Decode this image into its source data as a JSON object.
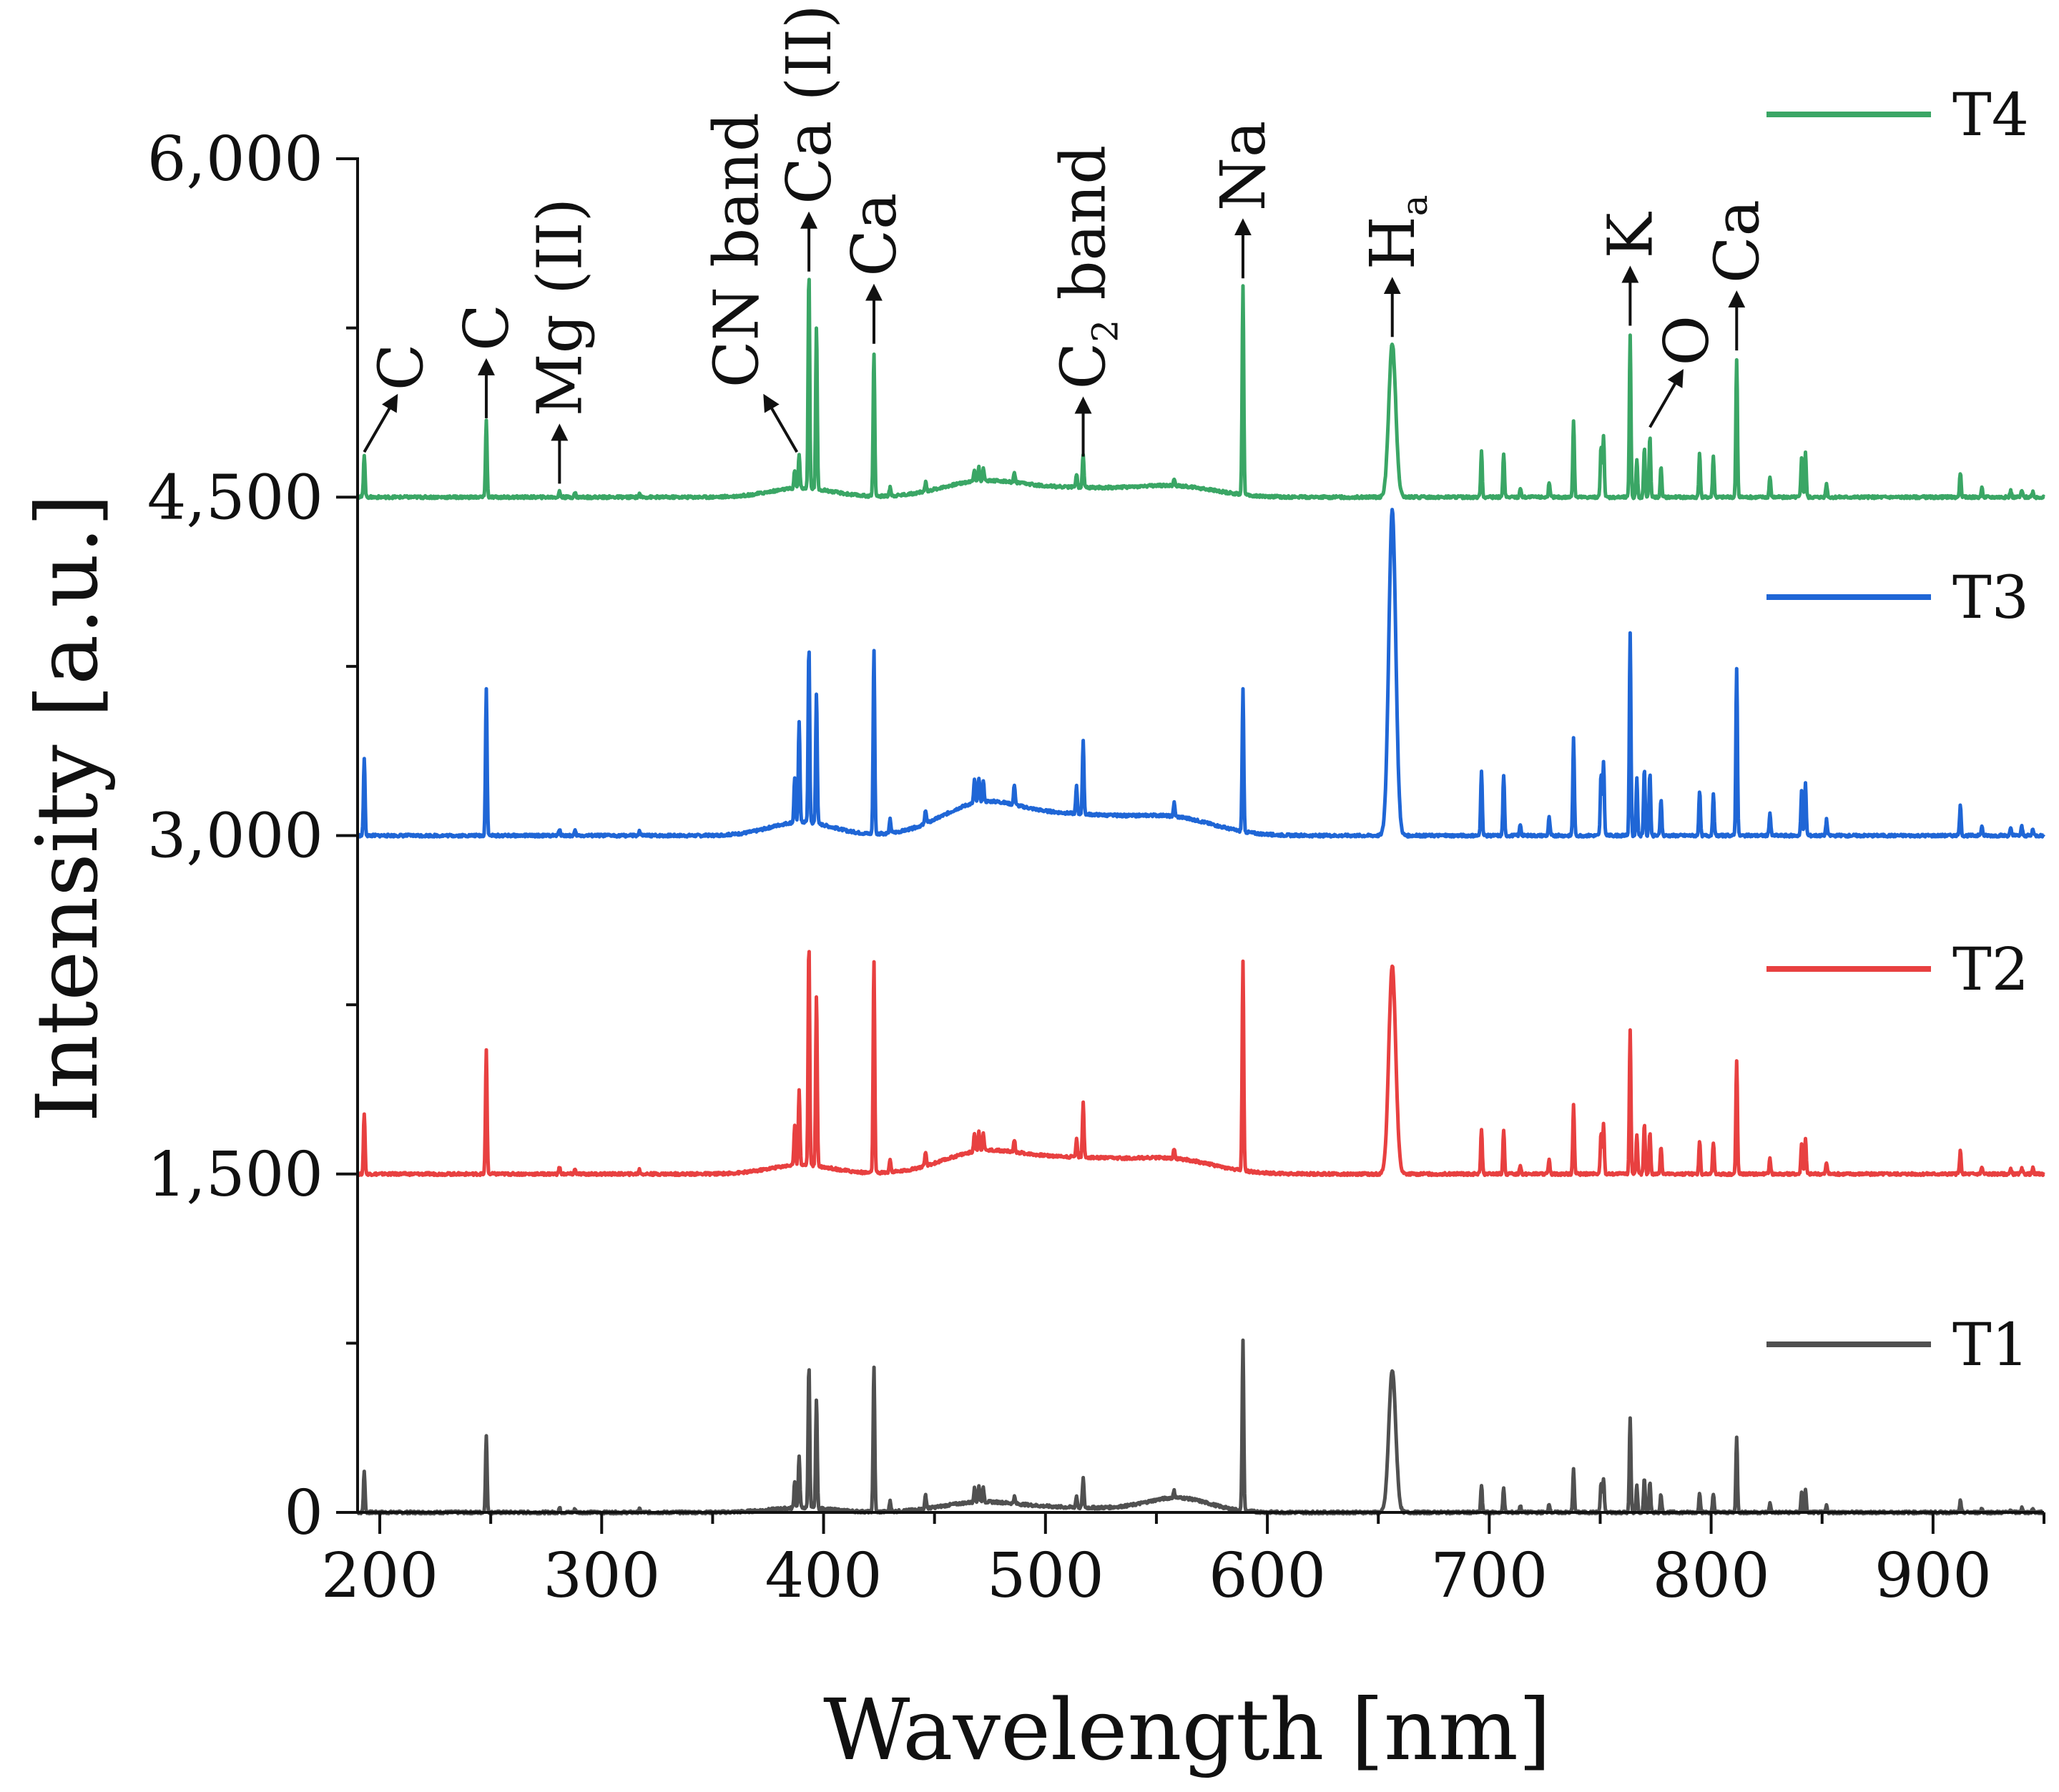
{
  "chart_data": {
    "type": "line",
    "xlabel": "Wavelength [nm]",
    "ylabel": "Intensity [a.u.]",
    "xlim": [
      190,
      950
    ],
    "ylim": [
      0,
      6000
    ],
    "x_ticks": [
      200,
      300,
      400,
      500,
      600,
      700,
      800,
      900
    ],
    "x_tick_labels": [
      "200",
      "300",
      "400",
      "500",
      "600",
      "700",
      "800",
      "900"
    ],
    "y_ticks": [
      0,
      1500,
      3000,
      4500,
      6000
    ],
    "y_tick_labels": [
      "0",
      "1,500",
      "3,000",
      "4,500",
      "6,000"
    ],
    "legend": [
      {
        "name": "T4",
        "color": "#3aa665"
      },
      {
        "name": "T3",
        "color": "#1f66d6"
      },
      {
        "name": "T2",
        "color": "#e84040"
      },
      {
        "name": "T1",
        "color": "#505050"
      }
    ],
    "series": [
      {
        "name": "T1",
        "color": "#505050",
        "baseline": 0,
        "peaks": [
          [
            193,
            180
          ],
          [
            248,
            340
          ],
          [
            281,
            20
          ],
          [
            288,
            15
          ],
          [
            317,
            15
          ],
          [
            387,
            120
          ],
          [
            389,
            230
          ],
          [
            393.4,
            640
          ],
          [
            396.8,
            490
          ],
          [
            422.7,
            650
          ],
          [
            430,
            50
          ],
          [
            446,
            60
          ],
          [
            468,
            60
          ],
          [
            470,
            70
          ],
          [
            472,
            60
          ],
          [
            486,
            30
          ],
          [
            514,
            50
          ],
          [
            517,
            130
          ],
          [
            558,
            30
          ],
          [
            589,
            750
          ],
          [
            656.3,
            630
          ],
          [
            696.5,
            120
          ],
          [
            706.5,
            110
          ],
          [
            714,
            30
          ],
          [
            727,
            40
          ],
          [
            738,
            190
          ],
          [
            750.4,
            130
          ],
          [
            751.5,
            150
          ],
          [
            763.5,
            420
          ],
          [
            766.5,
            120
          ],
          [
            769.9,
            150
          ],
          [
            772.4,
            130
          ],
          [
            777.4,
            80
          ],
          [
            794.8,
            90
          ],
          [
            801,
            80
          ],
          [
            811.5,
            330
          ],
          [
            826.5,
            40
          ],
          [
            840.8,
            90
          ],
          [
            842.5,
            100
          ],
          [
            852,
            30
          ],
          [
            912.3,
            50
          ],
          [
            922,
            20
          ],
          [
            935,
            15
          ],
          [
            940,
            20
          ],
          [
            945,
            15
          ]
        ],
        "bumps": [
          [
            390,
            20,
            20
          ],
          [
            470,
            40,
            25
          ],
          [
            513,
            20,
            40
          ],
          [
            560,
            60,
            20
          ]
        ]
      },
      {
        "name": "T2",
        "color": "#e84040",
        "baseline": 1500,
        "peaks": [
          [
            193,
            270
          ],
          [
            248,
            550
          ],
          [
            281,
            30
          ],
          [
            288,
            20
          ],
          [
            317,
            20
          ],
          [
            387,
            180
          ],
          [
            389,
            330
          ],
          [
            393.4,
            990
          ],
          [
            396.8,
            760
          ],
          [
            422.7,
            940
          ],
          [
            430,
            60
          ],
          [
            446,
            60
          ],
          [
            468,
            80
          ],
          [
            470,
            90
          ],
          [
            472,
            80
          ],
          [
            486,
            50
          ],
          [
            514,
            80
          ],
          [
            517,
            240
          ],
          [
            558,
            40
          ],
          [
            589,
            930
          ],
          [
            656.3,
            920
          ],
          [
            696.5,
            200
          ],
          [
            706.5,
            190
          ],
          [
            714,
            40
          ],
          [
            727,
            60
          ],
          [
            738,
            310
          ],
          [
            750.4,
            180
          ],
          [
            751.5,
            220
          ],
          [
            763.5,
            640
          ],
          [
            766.5,
            170
          ],
          [
            769.9,
            220
          ],
          [
            772.4,
            190
          ],
          [
            777.4,
            120
          ],
          [
            794.8,
            150
          ],
          [
            801,
            140
          ],
          [
            811.5,
            500
          ],
          [
            826.5,
            70
          ],
          [
            840.8,
            140
          ],
          [
            842.5,
            160
          ],
          [
            852,
            50
          ],
          [
            912.3,
            100
          ],
          [
            922,
            30
          ],
          [
            935,
            20
          ],
          [
            940,
            30
          ],
          [
            945,
            25
          ]
        ],
        "bumps": [
          [
            390,
            40,
            20
          ],
          [
            470,
            80,
            25
          ],
          [
            513,
            70,
            40
          ],
          [
            560,
            50,
            25
          ]
        ]
      },
      {
        "name": "T3",
        "color": "#1f66d6",
        "baseline": 3000,
        "peaks": [
          [
            193,
            340
          ],
          [
            248,
            650
          ],
          [
            281,
            30
          ],
          [
            288,
            20
          ],
          [
            317,
            20
          ],
          [
            387,
            200
          ],
          [
            389,
            450
          ],
          [
            393.4,
            780
          ],
          [
            396.8,
            580
          ],
          [
            422.7,
            820
          ],
          [
            430,
            60
          ],
          [
            446,
            60
          ],
          [
            468,
            100
          ],
          [
            470,
            110
          ],
          [
            472,
            90
          ],
          [
            486,
            90
          ],
          [
            514,
            120
          ],
          [
            517,
            320
          ],
          [
            558,
            60
          ],
          [
            589,
            630
          ],
          [
            656.3,
            1440
          ],
          [
            696.5,
            290
          ],
          [
            706.5,
            270
          ],
          [
            714,
            50
          ],
          [
            727,
            80
          ],
          [
            738,
            430
          ],
          [
            750.4,
            270
          ],
          [
            751.5,
            330
          ],
          [
            763.5,
            900
          ],
          [
            766.5,
            250
          ],
          [
            769.9,
            300
          ],
          [
            772.4,
            280
          ],
          [
            777.4,
            160
          ],
          [
            794.8,
            200
          ],
          [
            801,
            180
          ],
          [
            811.5,
            740
          ],
          [
            826.5,
            100
          ],
          [
            840.8,
            200
          ],
          [
            842.5,
            230
          ],
          [
            852,
            70
          ],
          [
            912.3,
            130
          ],
          [
            922,
            40
          ],
          [
            935,
            30
          ],
          [
            940,
            40
          ],
          [
            945,
            30
          ]
        ],
        "bumps": [
          [
            390,
            60,
            20
          ],
          [
            470,
            120,
            25
          ],
          [
            513,
            90,
            40
          ],
          [
            560,
            60,
            25
          ]
        ]
      },
      {
        "name": "T4",
        "color": "#3aa665",
        "baseline": 4500,
        "peaks": [
          [
            193,
            190
          ],
          [
            248,
            340
          ],
          [
            281,
            25
          ],
          [
            288,
            20
          ],
          [
            317,
            15
          ],
          [
            387,
            80
          ],
          [
            389,
            150
          ],
          [
            393.4,
            960
          ],
          [
            396.8,
            720
          ],
          [
            422.7,
            640
          ],
          [
            430,
            40
          ],
          [
            446,
            40
          ],
          [
            468,
            50
          ],
          [
            470,
            60
          ],
          [
            472,
            50
          ],
          [
            486,
            40
          ],
          [
            514,
            60
          ],
          [
            517,
            150
          ],
          [
            558,
            30
          ],
          [
            589,
            930
          ],
          [
            656.3,
            680
          ],
          [
            696.5,
            200
          ],
          [
            706.5,
            190
          ],
          [
            714,
            40
          ],
          [
            727,
            60
          ],
          [
            738,
            340
          ],
          [
            750.4,
            220
          ],
          [
            751.5,
            270
          ],
          [
            763.5,
            720
          ],
          [
            766.5,
            170
          ],
          [
            769.9,
            220
          ],
          [
            772.4,
            270
          ],
          [
            777.4,
            130
          ],
          [
            794.8,
            190
          ],
          [
            801,
            180
          ],
          [
            811.5,
            610
          ],
          [
            826.5,
            90
          ],
          [
            840.8,
            180
          ],
          [
            842.5,
            200
          ],
          [
            852,
            60
          ],
          [
            912.3,
            110
          ],
          [
            922,
            40
          ],
          [
            935,
            30
          ],
          [
            940,
            30
          ],
          [
            945,
            25
          ]
        ],
        "bumps": [
          [
            390,
            40,
            20
          ],
          [
            470,
            60,
            25
          ],
          [
            513,
            40,
            40
          ],
          [
            560,
            40,
            25
          ]
        ]
      }
    ],
    "annotations": [
      {
        "text": "C",
        "x": 193,
        "y": 4700,
        "angle": -60,
        "style": "diagonal"
      },
      {
        "text": "C",
        "x": 248,
        "y": 4850,
        "style": "vertical"
      },
      {
        "text": "Mg (II)",
        "x": 281,
        "y": 4560,
        "style": "vertical"
      },
      {
        "text": "CN band",
        "x": 388,
        "y": 4700,
        "angle": -120,
        "style": "diagonal"
      },
      {
        "text": "Ca (II)",
        "x": 393.4,
        "y": 5500,
        "style": "vertical"
      },
      {
        "text": "Ca",
        "x": 422.7,
        "y": 5180,
        "style": "vertical"
      },
      {
        "text": "C",
        "sub": "2",
        "suffix": " band",
        "x": 517,
        "y": 4680,
        "style": "vertical"
      },
      {
        "text": "Na",
        "x": 589,
        "y": 5470,
        "style": "vertical"
      },
      {
        "text": "H",
        "sub": "a",
        "x": 656.3,
        "y": 5210,
        "style": "vertical"
      },
      {
        "text": "K",
        "x": 763.5,
        "y": 5260,
        "style": "vertical"
      },
      {
        "text": "O",
        "x": 772.4,
        "y": 4810,
        "angle": -60,
        "style": "diagonal"
      },
      {
        "text": "Ca",
        "x": 811.5,
        "y": 5150,
        "style": "vertical"
      }
    ]
  }
}
